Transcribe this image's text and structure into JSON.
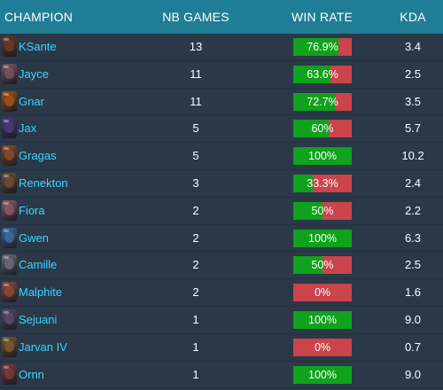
{
  "table": {
    "headers": {
      "champion": "CHAMPION",
      "games": "NB GAMES",
      "win_rate": "WIN RATE",
      "kda": "KDA"
    },
    "colors": {
      "header_bg": "#1f7e96",
      "row_bg": "#2a3848",
      "name": "#38d8ff",
      "win": "#10a21c",
      "loss": "#c9444b"
    },
    "rows": [
      {
        "champion": "KSante",
        "games": "13",
        "win_rate": "76.9%",
        "win_fraction": 0.769,
        "kda": "3.4",
        "portrait_icon": "ksante-portrait-icon",
        "portrait_color": "#6b3a2a"
      },
      {
        "champion": "Jayce",
        "games": "11",
        "win_rate": "63.6%",
        "win_fraction": 0.636,
        "kda": "2.5",
        "portrait_icon": "jayce-portrait-icon",
        "portrait_color": "#7a5560"
      },
      {
        "champion": "Gnar",
        "games": "11",
        "win_rate": "72.7%",
        "win_fraction": 0.727,
        "kda": "3.5",
        "portrait_icon": "gnar-portrait-icon",
        "portrait_color": "#a0521d"
      },
      {
        "champion": "Jax",
        "games": "5",
        "win_rate": "60%",
        "win_fraction": 0.6,
        "kda": "5.7",
        "portrait_icon": "jax-portrait-icon",
        "portrait_color": "#4b3a7a"
      },
      {
        "champion": "Gragas",
        "games": "5",
        "win_rate": "100%",
        "win_fraction": 1.0,
        "kda": "10.2",
        "portrait_icon": "gragas-portrait-icon",
        "portrait_color": "#8a4a2a"
      },
      {
        "champion": "Renekton",
        "games": "3",
        "win_rate": "33.3%",
        "win_fraction": 0.333,
        "kda": "2.4",
        "portrait_icon": "renekton-portrait-icon",
        "portrait_color": "#6a5030"
      },
      {
        "champion": "Fiora",
        "games": "2",
        "win_rate": "50%",
        "win_fraction": 0.5,
        "kda": "2.2",
        "portrait_icon": "fiora-portrait-icon",
        "portrait_color": "#8a5a6a"
      },
      {
        "champion": "Gwen",
        "games": "2",
        "win_rate": "100%",
        "win_fraction": 1.0,
        "kda": "6.3",
        "portrait_icon": "gwen-portrait-icon",
        "portrait_color": "#3f6a9a"
      },
      {
        "champion": "Camille",
        "games": "2",
        "win_rate": "50%",
        "win_fraction": 0.5,
        "kda": "2.5",
        "portrait_icon": "camille-portrait-icon",
        "portrait_color": "#6a6a78"
      },
      {
        "champion": "Malphite",
        "games": "2",
        "win_rate": "0%",
        "win_fraction": 0.0,
        "kda": "1.6",
        "portrait_icon": "malphite-portrait-icon",
        "portrait_color": "#8a4a3a"
      },
      {
        "champion": "Sejuani",
        "games": "1",
        "win_rate": "100%",
        "win_fraction": 1.0,
        "kda": "9.0",
        "portrait_icon": "sejuani-portrait-icon",
        "portrait_color": "#5a4a6a"
      },
      {
        "champion": "Jarvan IV",
        "games": "1",
        "win_rate": "0%",
        "win_fraction": 0.0,
        "kda": "0.7",
        "portrait_icon": "jarvan-iv-portrait-icon",
        "portrait_color": "#7a5a2a"
      },
      {
        "champion": "Ornn",
        "games": "1",
        "win_rate": "100%",
        "win_fraction": 1.0,
        "kda": "9.0",
        "portrait_icon": "ornn-portrait-icon",
        "portrait_color": "#7a3a3a"
      }
    ]
  }
}
